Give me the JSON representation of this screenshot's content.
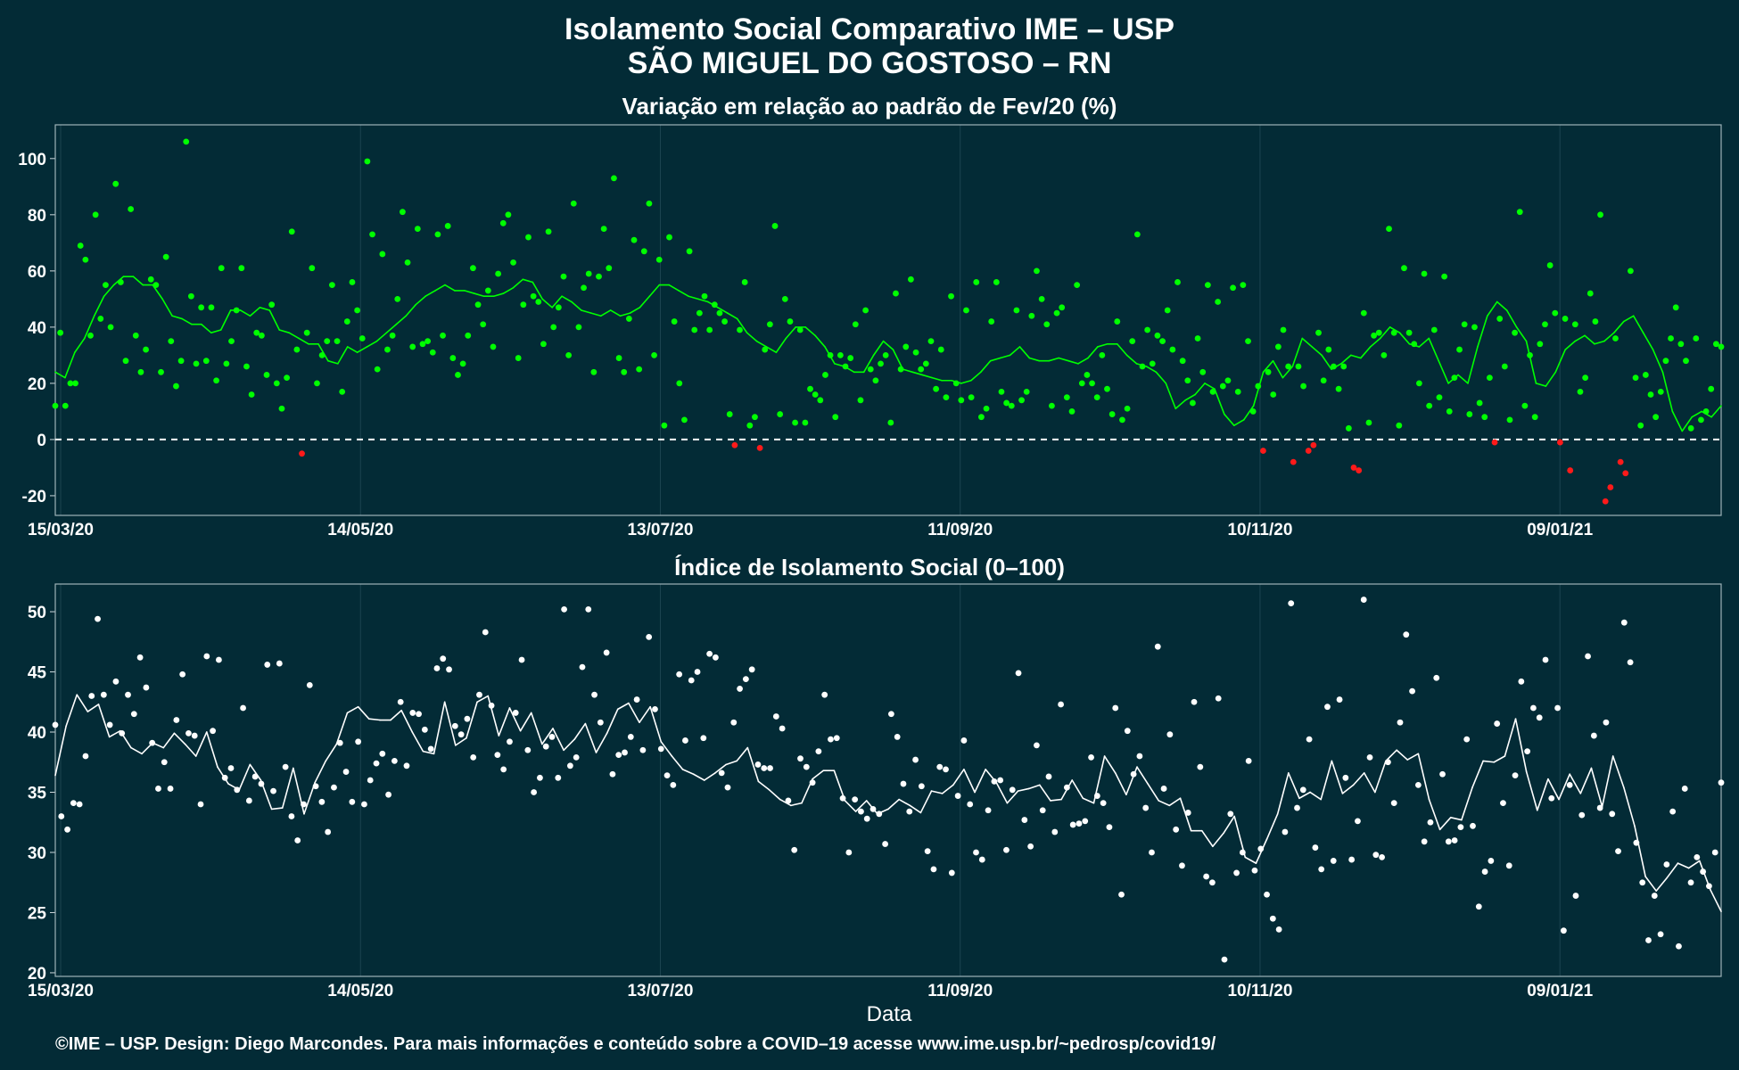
{
  "title": "Isolamento Social Comparativo IME – USP",
  "subtitle": "SÃO MIGUEL DO GOSTOSO – RN",
  "xlabel": "Data",
  "footer": "©IME – USP. Design: Diego Marcondes. Para mais informações e conteúdo sobre a COVID–19 acesse www.ime.usp.br/~pedrosp/covid19/",
  "colors": {
    "background": "#032b36",
    "positive": "#00ff00",
    "negative": "#ff1a1a",
    "index": "#ffffff",
    "grid": "#1c4450"
  },
  "chart_data": [
    {
      "type": "scatter",
      "title": "Variação em relação ao padrão de Fev/20 (%)",
      "x_range": [
        "2020-03-15",
        "2021-02-28"
      ],
      "x_ticks": [
        "15/03/20",
        "14/05/20",
        "13/07/20",
        "11/09/20",
        "10/11/20",
        "09/01/21"
      ],
      "ylim": [
        -27,
        112
      ],
      "y_ticks": [
        -20,
        0,
        20,
        40,
        60,
        80,
        100
      ],
      "reference_line": 0,
      "series": [
        {
          "kind": "points",
          "values": [
            12,
            38,
            12,
            20,
            20,
            69,
            64,
            37,
            80,
            43,
            55,
            40,
            91,
            56,
            28,
            82,
            37,
            24,
            32,
            57,
            55,
            24,
            65,
            35,
            19,
            28,
            106,
            51,
            27,
            47,
            28,
            47,
            21,
            61,
            27,
            35,
            46,
            61,
            26,
            16,
            38,
            37,
            23,
            48,
            20,
            11,
            22,
            74,
            32,
            -5,
            38,
            61,
            20,
            30,
            35,
            55,
            35,
            17,
            42,
            56,
            46,
            36,
            99,
            73,
            25,
            66,
            32,
            37,
            50,
            81,
            63,
            33,
            75,
            34,
            35,
            31,
            73,
            37,
            76,
            29,
            23,
            27,
            37,
            61,
            48,
            41,
            53,
            33,
            59,
            77,
            80,
            63,
            29,
            48,
            72,
            51,
            49,
            34,
            74,
            40,
            47,
            58,
            30,
            84,
            40,
            54,
            59,
            24,
            58,
            75,
            61,
            93,
            29,
            24,
            43,
            71,
            25,
            67,
            84,
            30,
            64,
            5,
            72,
            42,
            20,
            7,
            67,
            39,
            45,
            51,
            39,
            48,
            45,
            42,
            9,
            -2,
            39,
            56,
            5,
            8,
            -3,
            32,
            41,
            76,
            9,
            50,
            42,
            6,
            39,
            6,
            18,
            16,
            14,
            23,
            30,
            8,
            30,
            26,
            29,
            41,
            14,
            46,
            25,
            21,
            27,
            30,
            6,
            52,
            25,
            33,
            57,
            31,
            25,
            27,
            35,
            18,
            32,
            15,
            51,
            20,
            14,
            46,
            15,
            56,
            8,
            11,
            42,
            56,
            17,
            13,
            12,
            46,
            14,
            17,
            44,
            60,
            50,
            41,
            12,
            45,
            47,
            15,
            10,
            55,
            20,
            23,
            20,
            15,
            30,
            18,
            9,
            42,
            7,
            11,
            35,
            73,
            26,
            39,
            27,
            37,
            35,
            46,
            32,
            56,
            28,
            21,
            13,
            36,
            24,
            55,
            17,
            49,
            19,
            21,
            54,
            17,
            55,
            35,
            10,
            19,
            -4,
            24,
            16,
            33,
            39,
            26,
            -8,
            26,
            19,
            -4,
            -2,
            38,
            21,
            32,
            26,
            18,
            26,
            4,
            -10,
            -11,
            45,
            6,
            37,
            38,
            30,
            75,
            38,
            5,
            61,
            38,
            34,
            20,
            59,
            12,
            39,
            15,
            58,
            10,
            22,
            32,
            41,
            9,
            40,
            13,
            8,
            22,
            -1,
            43,
            26,
            7,
            38,
            81,
            12,
            30,
            8,
            34,
            41,
            62,
            45,
            -1,
            43,
            -11,
            41,
            17,
            22,
            52,
            42,
            80,
            -22,
            -17,
            36,
            -8,
            -12,
            60,
            22,
            5,
            23,
            16,
            8,
            17,
            28,
            36,
            47,
            34,
            28,
            4,
            36,
            7,
            10,
            18,
            34,
            33
          ]
        },
        {
          "kind": "moving_average",
          "values": [
            24,
            22,
            31,
            36,
            44,
            51,
            55,
            58,
            58,
            55,
            55,
            50,
            44,
            43,
            41,
            41,
            38,
            39,
            46,
            46,
            44,
            47,
            46,
            39,
            38,
            36,
            34,
            34,
            28,
            27,
            33,
            31,
            33,
            35,
            38,
            41,
            44,
            48,
            51,
            53,
            55,
            53,
            53,
            52,
            51,
            51,
            52,
            54,
            57,
            56,
            50,
            47,
            51,
            49,
            46,
            45,
            44,
            46,
            44,
            45,
            47,
            51,
            55,
            55,
            53,
            51,
            50,
            49,
            47,
            45,
            43,
            38,
            35,
            33,
            31,
            36,
            40,
            40,
            37,
            33,
            27,
            26,
            24,
            24,
            30,
            35,
            32,
            25,
            24,
            23,
            22,
            21,
            21,
            20,
            21,
            24,
            28,
            29,
            30,
            33,
            29,
            28,
            28,
            29,
            28,
            27,
            29,
            33,
            34,
            34,
            30,
            27,
            26,
            24,
            20,
            11,
            14,
            16,
            20,
            18,
            9,
            5,
            7,
            12,
            24,
            28,
            22,
            26,
            36,
            33,
            30,
            25,
            27,
            30,
            29,
            33,
            36,
            40,
            38,
            34,
            33,
            36,
            28,
            20,
            23,
            20,
            33,
            44,
            49,
            46,
            40,
            35,
            20,
            19,
            24,
            32,
            35,
            37,
            34,
            35,
            38,
            42,
            44,
            38,
            32,
            24,
            10,
            3,
            8,
            10,
            8,
            12
          ]
        }
      ]
    },
    {
      "type": "scatter",
      "title": "Índice de Isolamento Social (0–100)",
      "x_range": [
        "2020-03-15",
        "2021-02-28"
      ],
      "x_ticks": [
        "15/03/20",
        "14/05/20",
        "13/07/20",
        "11/09/20",
        "10/11/20",
        "09/01/21"
      ],
      "ylim": [
        19.7,
        52.3
      ],
      "y_ticks": [
        20,
        25,
        30,
        35,
        40,
        45,
        50
      ],
      "series": [
        {
          "kind": "points",
          "values": [
            40.6,
            33,
            31.9,
            34.1,
            34,
            38,
            43,
            49.4,
            43.1,
            40.6,
            44.2,
            39.9,
            43.1,
            41.5,
            46.2,
            43.7,
            39.1,
            35.3,
            37.5,
            35.3,
            41,
            44.8,
            39.9,
            39.7,
            34,
            46.3,
            40.1,
            46,
            36.2,
            37,
            35.2,
            42,
            34.3,
            36.3,
            35.7,
            45.6,
            35.1,
            45.7,
            37.1,
            33,
            31,
            34,
            43.9,
            35.5,
            34.2,
            31.7,
            35.4,
            39.1,
            36.7,
            34.2,
            39.2,
            34,
            36,
            37.4,
            38.2,
            34.8,
            37.6,
            42.5,
            37.2,
            41.6,
            41.5,
            40.2,
            38.6,
            45.3,
            46.1,
            45.2,
            40.5,
            39.8,
            41.1,
            37.9,
            43.1,
            48.3,
            42.2,
            38.1,
            36.9,
            39.2,
            41.6,
            46,
            38.5,
            35,
            36.2,
            38.8,
            39.6,
            36.2,
            50.2,
            37.2,
            37.9,
            45.4,
            50.2,
            43.1,
            40.8,
            46.6,
            36.5,
            38.1,
            38.3,
            39.6,
            42.7,
            38.5,
            47.9,
            41.9,
            38.6,
            36.4,
            35.6,
            44.8,
            39.3,
            44.3,
            45,
            39.5,
            46.5,
            46.2,
            36.6,
            35.4,
            40.8,
            43.6,
            44.4,
            45.2,
            37.3,
            37,
            37,
            41.3,
            40.3,
            34.3,
            30.2,
            37.8,
            37.1,
            35.8,
            38.4,
            43.1,
            39.4,
            39.5,
            34.5,
            30,
            34.4,
            33.4,
            32.8,
            33.6,
            33.2,
            30.7,
            41.5,
            39.6,
            35.7,
            33.4,
            37.7,
            35.5,
            30.1,
            28.6,
            37.1,
            36.9,
            28.3,
            34.7,
            39.3,
            34,
            30,
            29.4,
            33.5,
            35.9,
            36,
            30.2,
            35.2,
            44.9,
            32.7,
            30.5,
            38.9,
            33.5,
            36.3,
            31.7,
            42.3,
            35.4,
            32.3,
            32.4,
            32.6,
            37.9,
            34.7,
            34.1,
            32.1,
            42,
            26.5,
            40.1,
            36.5,
            38,
            33.7,
            30,
            47.1,
            35.3,
            39.8,
            31.9,
            28.9,
            33.3,
            42.5,
            37.1,
            28,
            27.5,
            42.8,
            21.1,
            33.2,
            28.3,
            30,
            37.6,
            28.5,
            30.3,
            26.5,
            24.5,
            23.6,
            31.7,
            50.7,
            33.7,
            35.2,
            39.4,
            30.4,
            28.6,
            42.1,
            29.3,
            42.7,
            36.2,
            29.4,
            32.6,
            51,
            37.9,
            29.8,
            29.6,
            37.5,
            34.1,
            40.8,
            48.1,
            43.4,
            35.6,
            30.9,
            32.5,
            44.5,
            36.5,
            30.9,
            31,
            32.1,
            39.4,
            32.2,
            25.5,
            28.4,
            29.3,
            40.7,
            34.1,
            28.9,
            36.4,
            44.2,
            38.4,
            42,
            41.2,
            46,
            34.5,
            42,
            23.5,
            35.6,
            26.4,
            33.1,
            46.3,
            39.7,
            33.7,
            40.8,
            33.2,
            30.1,
            49.1,
            45.8,
            30.8,
            27.5,
            22.7,
            26.4,
            23.2,
            29,
            33.4,
            22.2,
            35.3,
            27.5,
            29.6,
            28.4,
            27.2,
            30,
            35.8
          ]
        },
        {
          "kind": "moving_average",
          "values": [
            36.4,
            40.5,
            43.1,
            41.7,
            42.3,
            39.6,
            40.1,
            38.7,
            38.2,
            39.1,
            38.7,
            39.9,
            39,
            38,
            40,
            37.1,
            35.7,
            35.2,
            37.3,
            36,
            33.6,
            33.7,
            37,
            33.2,
            35.8,
            37.6,
            39,
            41.6,
            42.1,
            41.1,
            41,
            41,
            41.8,
            40,
            38.4,
            38.2,
            42.5,
            38.9,
            39.5,
            42.5,
            43,
            39.7,
            42,
            40.1,
            41.6,
            39,
            40.3,
            38.5,
            39.4,
            40.7,
            38.3,
            39.9,
            41.9,
            42.4,
            40.8,
            42.1,
            39.2,
            38,
            36.9,
            36.5,
            36,
            36.6,
            37.3,
            37.6,
            38.7,
            35.9,
            35.2,
            34.4,
            33.9,
            34.1,
            36.1,
            36.8,
            36.8,
            34.3,
            33.4,
            34.3,
            33.2,
            33.6,
            34.4,
            33.9,
            33.3,
            35.1,
            34.9,
            35.6,
            36.9,
            35,
            36.9,
            35.8,
            34.1,
            35.1,
            35.3,
            35.6,
            34.3,
            34.4,
            36,
            34.5,
            34.1,
            38,
            36.6,
            34.8,
            37.1,
            35.7,
            34.3,
            33.9,
            34.5,
            31.8,
            31.8,
            30.5,
            31.6,
            33,
            29.6,
            29.1,
            31.1,
            33.2,
            36.6,
            34.5,
            35,
            34.4,
            37.6,
            34.9,
            35.6,
            36.6,
            35,
            37.6,
            38.5,
            37.7,
            38.2,
            34.4,
            31.9,
            32.9,
            32.7,
            35.4,
            37.6,
            37.5,
            38,
            41.1,
            36.7,
            33.5,
            36.1,
            34.4,
            36.5,
            34.9,
            37,
            33.8,
            38,
            35.4,
            32.2,
            28,
            26.8,
            27.9,
            29.1,
            28.7,
            29.3,
            26.9,
            25.1
          ]
        }
      ]
    }
  ]
}
